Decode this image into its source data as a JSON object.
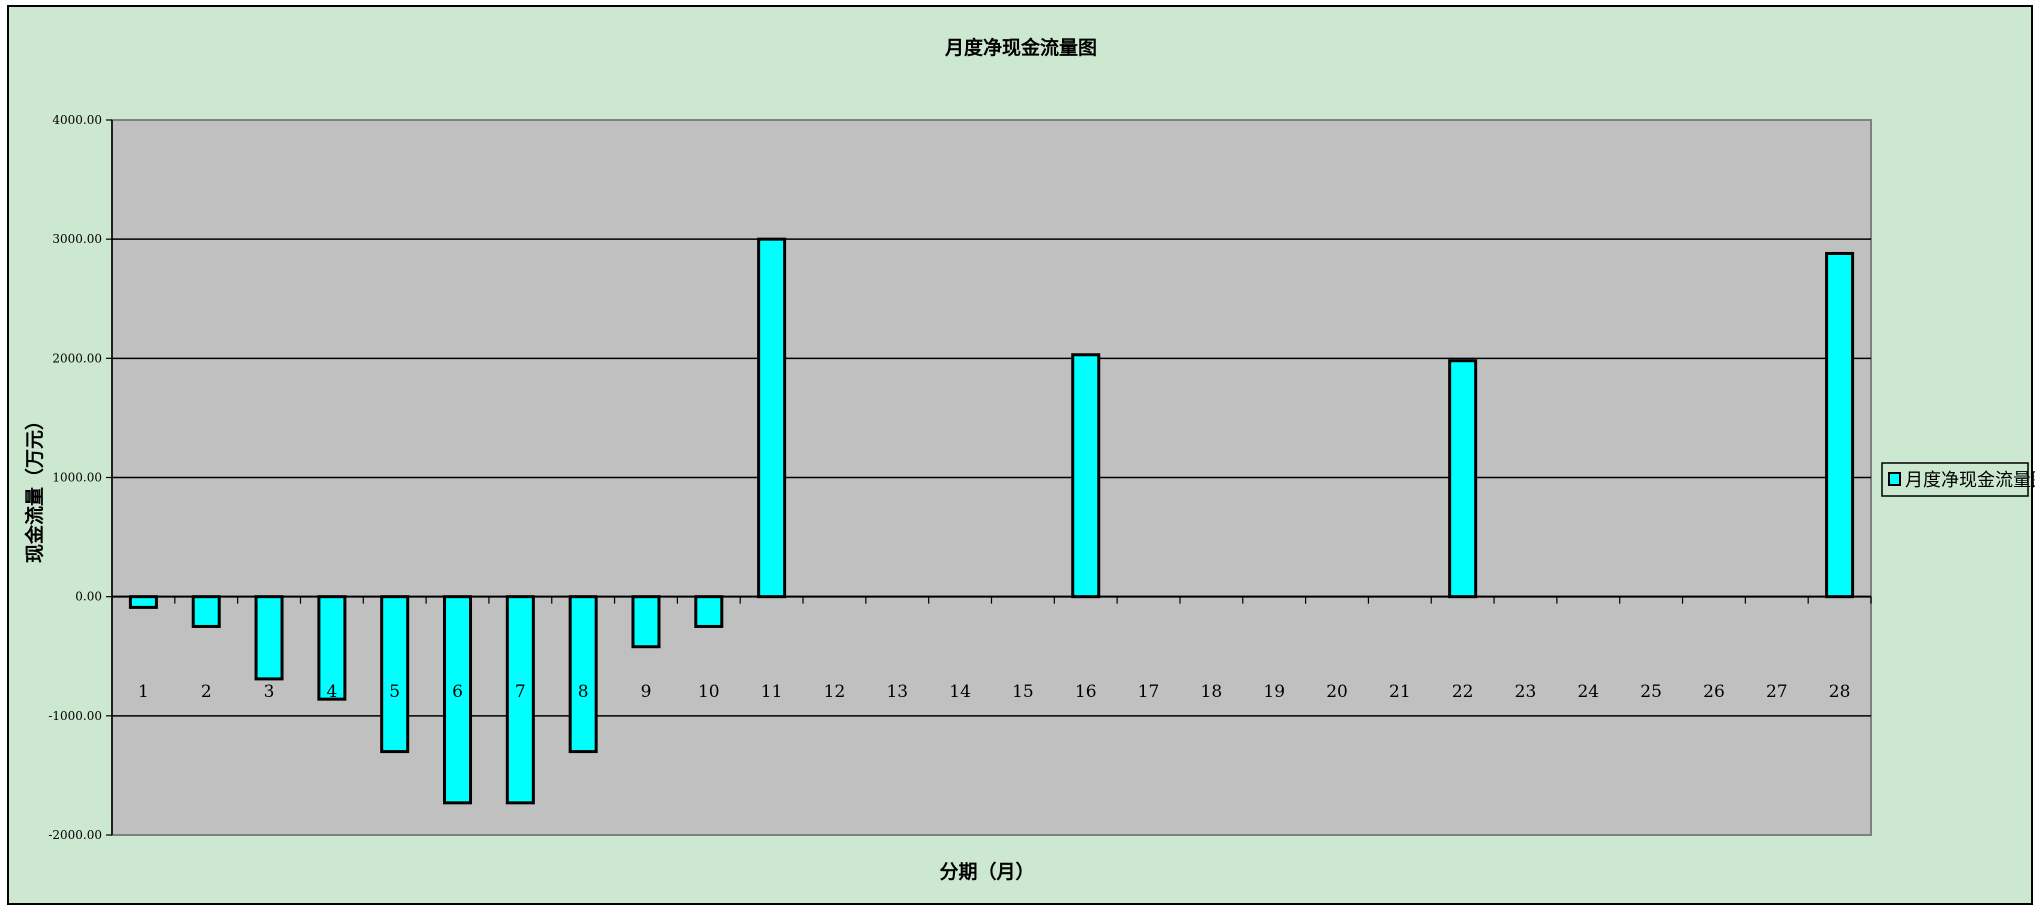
{
  "chart_data": {
    "type": "bar",
    "title": "月度净现金流量图",
    "xlabel": "分期（月）",
    "ylabel": "现金流量（万元）",
    "ylim": [
      -2000,
      4000
    ],
    "yticks": [
      "-2000.00",
      "-1000.00",
      "0.00",
      "1000.00",
      "2000.00",
      "3000.00",
      "4000.00"
    ],
    "grid": true,
    "legend_position": "right",
    "categories": [
      "1",
      "2",
      "3",
      "4",
      "5",
      "6",
      "7",
      "8",
      "9",
      "10",
      "11",
      "12",
      "13",
      "14",
      "15",
      "16",
      "17",
      "18",
      "19",
      "20",
      "21",
      "22",
      "23",
      "24",
      "25",
      "26",
      "27",
      "28"
    ],
    "series": [
      {
        "name": "月度净现金流量图",
        "color": "#00ffff",
        "values": [
          -90,
          -250,
          -690,
          -860,
          -1300,
          -1730,
          -1730,
          -1300,
          -420,
          -250,
          3000,
          0,
          0,
          0,
          0,
          2030,
          0,
          0,
          0,
          0,
          0,
          1980,
          0,
          0,
          0,
          0,
          0,
          2880
        ]
      }
    ],
    "plot_background": "#c0c0c0",
    "chart_background": "#cde8d0"
  }
}
